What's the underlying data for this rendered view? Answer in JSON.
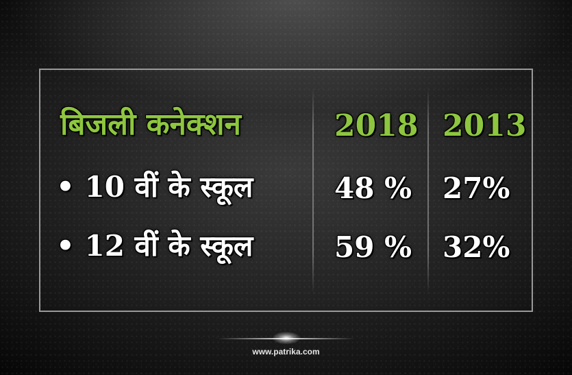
{
  "table": {
    "header": {
      "label": "बिजली कनेक्शन",
      "year1": "2018",
      "year2": "2013"
    },
    "rows": [
      {
        "label": "• 10 वीं के स्कूल",
        "value1": "48 %",
        "value2": "27%"
      },
      {
        "label": "• 12 वीं के स्कूल",
        "value1": "59 %",
        "value2": "32%"
      }
    ]
  },
  "footer": {
    "website": "www.patrika.com"
  },
  "colors": {
    "accent": "#8ec63f",
    "text": "#ffffff",
    "border": "#9a9a9a"
  }
}
